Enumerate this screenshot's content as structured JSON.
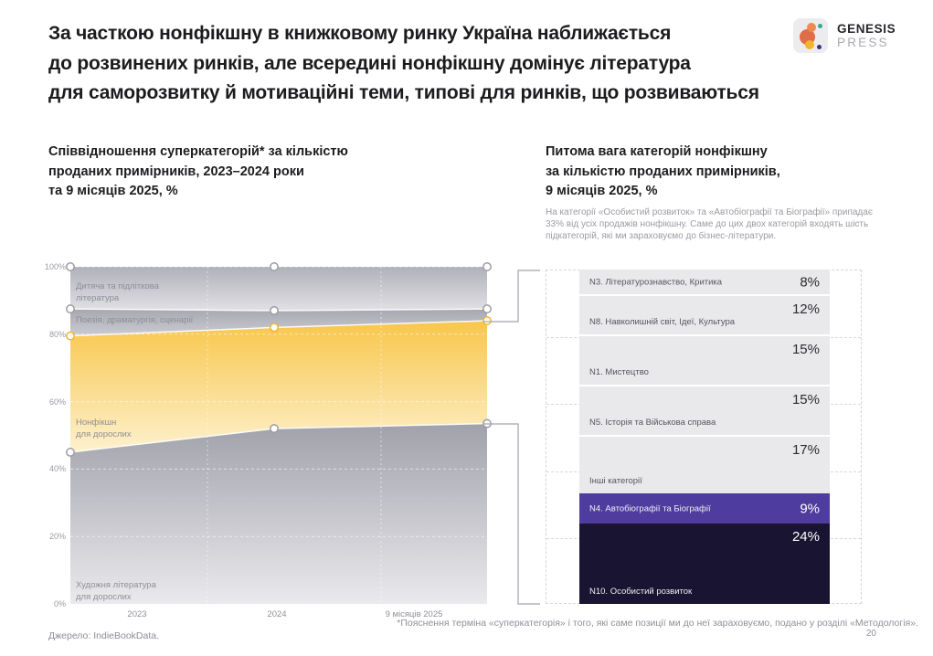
{
  "slide": {
    "title_lines": [
      "За часткою нонфікшну в книжковому ринку Україна наближається",
      "до розвинених ринків, але всередині нонфікшну домінує література",
      "для саморозвитку й мотиваційні теми, типові для ринків, що розвиваються"
    ],
    "footnote": "*Пояснення терміна «суперкатегорія» і того, які саме позиції ми до неї зараховуємо, подано у розділі «Методологія».",
    "source": "Джерело: IndieBookData.",
    "page_number": "20"
  },
  "logo": {
    "name": "GENESIS",
    "sub": "PRESS"
  },
  "left_chart": {
    "title_lines": [
      "Співвідношення суперкатегорій* за кількістю",
      "проданих примірників, 2023–2024 роки",
      "та 9 місяців 2025, %"
    ],
    "y_ticks": [
      "100%",
      "80%",
      "60%",
      "40%",
      "20%",
      "0%"
    ],
    "x_ticks": [
      "2023",
      "2024",
      "9 місяців 2025"
    ],
    "band_labels": [
      "Дитяча та підліткова\nлітература",
      "Поезія, драматургія, сценарії",
      "Нонфікшн\nдля дорослих",
      "Художня література\nдля дорослих"
    ]
  },
  "right_chart": {
    "title_lines": [
      "Питома вага категорій нонфікшну",
      "за кількістю проданих примірників,",
      "9 місяців 2025, %"
    ],
    "note": "На категорії «Особистий розвиток» та «Автобіографії та Біографії» припадає 33% від усіх продажів нонфікшну. Саме до цих двох категорій входять шість підкатегорій, які ми зараховуємо до бізнес-літератури.",
    "rows": [
      {
        "label": "N3. Літературознавство, Критика",
        "value": 8,
        "value_label": "8%",
        "style": "gray"
      },
      {
        "label": "N8. Навколишній світ, Ідеї, Культура",
        "value": 12,
        "value_label": "12%",
        "style": "gray"
      },
      {
        "label": "N1. Мистецтво",
        "value": 15,
        "value_label": "15%",
        "style": "gray"
      },
      {
        "label": "N5. Історія та Військова справа",
        "value": 15,
        "value_label": "15%",
        "style": "gray"
      },
      {
        "label": "Інші категорії",
        "value": 17,
        "value_label": "17%",
        "style": "gray"
      },
      {
        "label": "N4. Автобіографії та Біографії",
        "value": 9,
        "value_label": "9%",
        "style": "purple"
      },
      {
        "label": "N10. Особистий розвиток",
        "value": 24,
        "value_label": "24%",
        "style": "navy"
      }
    ]
  },
  "colors": {
    "yellow_top": "#f8c64b",
    "yellow_bottom": "#fdf1cd",
    "purple": "#4e3c9e",
    "navy": "#1a1433",
    "gray_row": "#e9e9eb",
    "marker_gray": "#9b9ba5",
    "marker_yellow": "#f1b52f"
  },
  "chart_data": [
    {
      "type": "area",
      "stacked": true,
      "title": "Співвідношення суперкатегорій* за кількістю проданих примірників, 2023–2024 роки та 9 місяців 2025, %",
      "x": [
        "2023",
        "2024",
        "9 місяців 2025"
      ],
      "series": [
        {
          "name": "Художня література для дорослих",
          "values": [
            45,
            52,
            53.5
          ]
        },
        {
          "name": "Нонфікшн для дорослих",
          "values": [
            34.5,
            30,
            30.5
          ]
        },
        {
          "name": "Поезія, драматургія, сценарії",
          "values": [
            8,
            5,
            3.5
          ]
        },
        {
          "name": "Дитяча та підліткова література",
          "values": [
            12.5,
            13,
            12.5
          ]
        }
      ],
      "ylabel": "%",
      "ylim": [
        0,
        100
      ],
      "grid": true,
      "legend": "inline-labels"
    },
    {
      "type": "bar",
      "title": "Питома вага категорій нонфікшну за кількістю проданих примірників, 9 місяців 2025, %",
      "categories": [
        "N3. Літературознавство, Критика",
        "N8. Навколишній світ, Ідеї, Культура",
        "N1. Мистецтво",
        "N5. Історія та Військова справа",
        "Інші категорії",
        "N4. Автобіографії та Біографії",
        "N10. Особистий розвиток"
      ],
      "values": [
        8,
        12,
        15,
        15,
        17,
        9,
        24
      ],
      "unit": "%",
      "total": 100,
      "highlight": {
        "N4. Автобіографії та Біографії": "purple",
        "N10. Особистий розвиток": "navy"
      }
    }
  ]
}
